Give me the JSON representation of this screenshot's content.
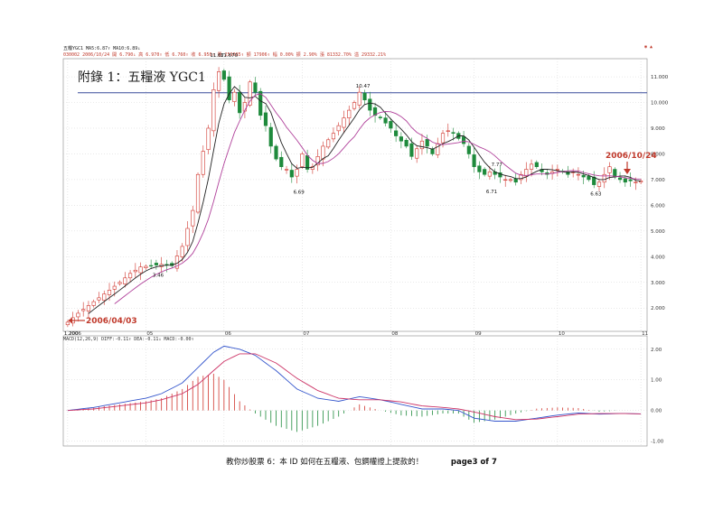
{
  "header": {
    "name_line": "五糧YGC1   MA5:6.87↑  MA10:6.89↓",
    "quote_line": "030002  2006/10/24  開 6.790↓ 高 6.970↑ 低 6.760↑ 收 6.950↑ 量 259085↑ 額 17906↑ 幅 0.00% 振 2.90% 漲 81332.70% 溢 29332.21%",
    "right_marker": "◉ ▲"
  },
  "title": "附錄 1：五糧液 YGC1",
  "annotations": {
    "start_date": "2006/04/03",
    "end_date": "2006/10/24"
  },
  "footer": {
    "text": "教你炒股票 6：本 ID 如何在五糧液、包鋼權證上提款的！",
    "page": "page3 of 7"
  },
  "macd": {
    "legend": "MACD(12,26,9) DIFF:-0.11↑ DEA:-0.11↓ MACD:-0.00↑"
  },
  "chart_data": [
    {
      "type": "candlestick",
      "x_tick_labels": [
        "2006",
        "05",
        "06",
        "07",
        "08",
        "09",
        "10",
        "11"
      ],
      "y_tick_labels": [
        "2.000",
        "3.000",
        "4.000",
        "5.000",
        "6.000",
        "7.000",
        "8.000",
        "9.000",
        "10.000",
        "11.000"
      ],
      "ylim": [
        1.2,
        11.6
      ],
      "hline": 10.38,
      "series": [
        {
          "name": "MA5",
          "color": "#222222"
        },
        {
          "name": "MA10",
          "color": "#b0409a"
        }
      ],
      "close_path": [
        [
          0,
          1.45
        ],
        [
          2,
          1.8
        ],
        [
          4,
          2.1
        ],
        [
          6,
          2.4
        ],
        [
          8,
          2.7
        ],
        [
          10,
          3.0
        ],
        [
          12,
          3.35
        ],
        [
          14,
          3.6
        ],
        [
          16,
          3.65
        ],
        [
          18,
          3.7
        ],
        [
          20,
          3.65
        ],
        [
          22,
          4.4
        ],
        [
          24,
          5.8
        ],
        [
          25,
          7.2
        ],
        [
          27,
          9.0
        ],
        [
          28,
          10.5
        ],
        [
          29,
          11.2
        ],
        [
          30,
          10.9
        ],
        [
          31,
          10.1
        ],
        [
          32,
          10.4
        ],
        [
          33,
          9.6
        ],
        [
          34,
          10.0
        ],
        [
          35,
          10.8
        ],
        [
          36,
          10.4
        ],
        [
          37,
          9.5
        ],
        [
          38,
          9.1
        ],
        [
          39,
          8.3
        ],
        [
          40,
          7.8
        ],
        [
          41,
          7.5
        ],
        [
          42,
          7.4
        ],
        [
          43,
          7.1
        ],
        [
          44,
          7.4
        ],
        [
          45,
          8.0
        ],
        [
          46,
          7.4
        ],
        [
          47,
          7.5
        ],
        [
          48,
          7.9
        ],
        [
          49,
          8.3
        ],
        [
          51,
          8.8
        ],
        [
          53,
          9.4
        ],
        [
          55,
          10.0
        ],
        [
          56,
          10.4
        ],
        [
          57,
          10.1
        ],
        [
          58,
          9.7
        ],
        [
          59,
          9.5
        ],
        [
          60,
          9.4
        ],
        [
          61,
          9.2
        ],
        [
          62,
          9.0
        ],
        [
          63,
          8.7
        ],
        [
          64,
          8.5
        ],
        [
          65,
          8.3
        ],
        [
          66,
          7.9
        ],
        [
          67,
          8.2
        ],
        [
          68,
          8.5
        ],
        [
          69,
          8.3
        ],
        [
          70,
          8.0
        ],
        [
          71,
          8.4
        ],
        [
          72,
          8.8
        ],
        [
          73,
          8.9
        ],
        [
          74,
          8.8
        ],
        [
          75,
          8.6
        ],
        [
          76,
          8.4
        ],
        [
          77,
          8.0
        ],
        [
          78,
          7.5
        ],
        [
          79,
          7.3
        ],
        [
          80,
          7.2
        ],
        [
          81,
          7.3
        ],
        [
          82,
          7.2
        ],
        [
          83,
          7.1
        ],
        [
          84,
          7.0
        ],
        [
          85,
          7.0
        ],
        [
          86,
          6.9
        ],
        [
          87,
          7.2
        ],
        [
          88,
          7.4
        ],
        [
          89,
          7.6
        ],
        [
          90,
          7.5
        ],
        [
          91,
          7.3
        ],
        [
          92,
          7.2
        ],
        [
          93,
          7.3
        ],
        [
          94,
          7.4
        ],
        [
          95,
          7.3
        ],
        [
          96,
          7.2
        ],
        [
          97,
          7.3
        ],
        [
          98,
          7.2
        ],
        [
          99,
          7.1
        ],
        [
          100,
          7.0
        ],
        [
          101,
          6.8
        ],
        [
          102,
          6.9
        ],
        [
          103,
          7.2
        ],
        [
          104,
          7.5
        ],
        [
          105,
          7.1
        ],
        [
          106,
          7.0
        ],
        [
          107,
          6.9
        ],
        [
          108,
          6.95
        ],
        [
          109,
          6.9
        ],
        [
          110,
          6.95
        ]
      ],
      "price_labels": [
        {
          "x": 0,
          "y": 1.2,
          "text": "1.200"
        },
        {
          "x": 17,
          "y": 3.46,
          "text": "3.46"
        },
        {
          "x": 28,
          "y": 11.67,
          "text": "11.67"
        },
        {
          "x": 30,
          "y": 11.67,
          "text": "11.670"
        },
        {
          "x": 44,
          "y": 6.69,
          "text": "6.69"
        },
        {
          "x": 56,
          "y": 10.47,
          "text": "10.47"
        },
        {
          "x": 82,
          "y": 7.77,
          "text": "7.77"
        },
        {
          "x": 81,
          "y": 6.71,
          "text": "6.71"
        },
        {
          "x": 101,
          "y": 6.63,
          "text": "6.63"
        }
      ]
    },
    {
      "type": "line",
      "title": "",
      "y_tick_labels": [
        "-1.00",
        "0.00",
        "1.00",
        "2.00"
      ],
      "ylim": [
        -1.1,
        2.2
      ],
      "series": [
        {
          "name": "DIFF",
          "color": "#3355cc",
          "points": [
            [
              0,
              0.0
            ],
            [
              5,
              0.1
            ],
            [
              10,
              0.25
            ],
            [
              15,
              0.4
            ],
            [
              18,
              0.55
            ],
            [
              22,
              0.9
            ],
            [
              25,
              1.4
            ],
            [
              28,
              1.9
            ],
            [
              30,
              2.1
            ],
            [
              33,
              2.0
            ],
            [
              36,
              1.8
            ],
            [
              40,
              1.3
            ],
            [
              44,
              0.7
            ],
            [
              48,
              0.4
            ],
            [
              52,
              0.3
            ],
            [
              56,
              0.45
            ],
            [
              60,
              0.35
            ],
            [
              64,
              0.2
            ],
            [
              68,
              0.05
            ],
            [
              72,
              0.05
            ],
            [
              75,
              0.0
            ],
            [
              78,
              -0.25
            ],
            [
              82,
              -0.35
            ],
            [
              86,
              -0.35
            ],
            [
              90,
              -0.25
            ],
            [
              94,
              -0.15
            ],
            [
              98,
              -0.08
            ],
            [
              102,
              -0.12
            ],
            [
              106,
              -0.1
            ],
            [
              110,
              -0.11
            ]
          ]
        },
        {
          "name": "DEA",
          "color": "#cc3366",
          "points": [
            [
              0,
              0.0
            ],
            [
              5,
              0.05
            ],
            [
              10,
              0.15
            ],
            [
              15,
              0.25
            ],
            [
              18,
              0.35
            ],
            [
              22,
              0.55
            ],
            [
              25,
              0.85
            ],
            [
              28,
              1.3
            ],
            [
              30,
              1.6
            ],
            [
              33,
              1.85
            ],
            [
              36,
              1.85
            ],
            [
              40,
              1.55
            ],
            [
              44,
              1.05
            ],
            [
              48,
              0.65
            ],
            [
              52,
              0.4
            ],
            [
              56,
              0.35
            ],
            [
              60,
              0.35
            ],
            [
              64,
              0.28
            ],
            [
              68,
              0.15
            ],
            [
              72,
              0.1
            ],
            [
              75,
              0.05
            ],
            [
              78,
              -0.05
            ],
            [
              82,
              -0.2
            ],
            [
              86,
              -0.3
            ],
            [
              90,
              -0.28
            ],
            [
              94,
              -0.2
            ],
            [
              98,
              -0.12
            ],
            [
              102,
              -0.1
            ],
            [
              106,
              -0.1
            ],
            [
              110,
              -0.11
            ]
          ]
        }
      ]
    }
  ]
}
